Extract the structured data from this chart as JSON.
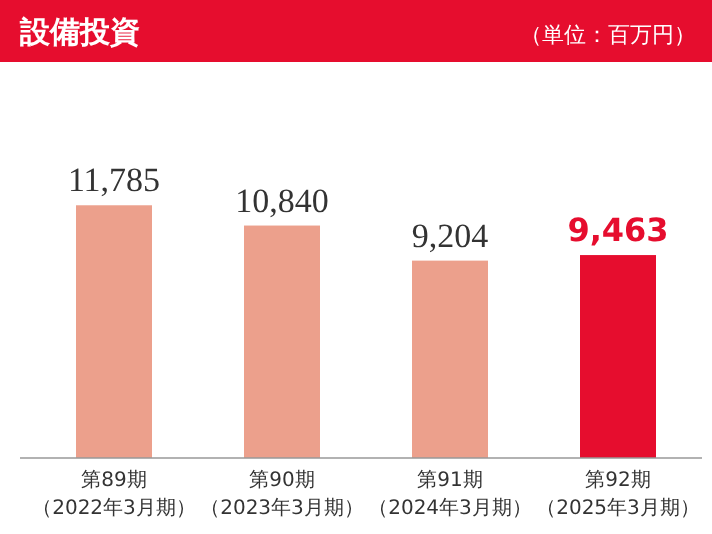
{
  "chart_data": {
    "type": "bar",
    "title": "設備投資",
    "subtitle": "（単位：百万円）",
    "categories": [
      "第89期（2022年3月期）",
      "第90期（2023年3月期）",
      "第91期（2024年3月期）",
      "第92期（2025年3月期）"
    ],
    "values": [
      11785,
      10840,
      9204,
      9463
    ],
    "colors": [
      "#eca08c",
      "#eca08c",
      "#eca08c",
      "#e60d2e"
    ],
    "value_labels": [
      "11,785",
      "10,840",
      "9,204",
      "9,463"
    ]
  }
}
